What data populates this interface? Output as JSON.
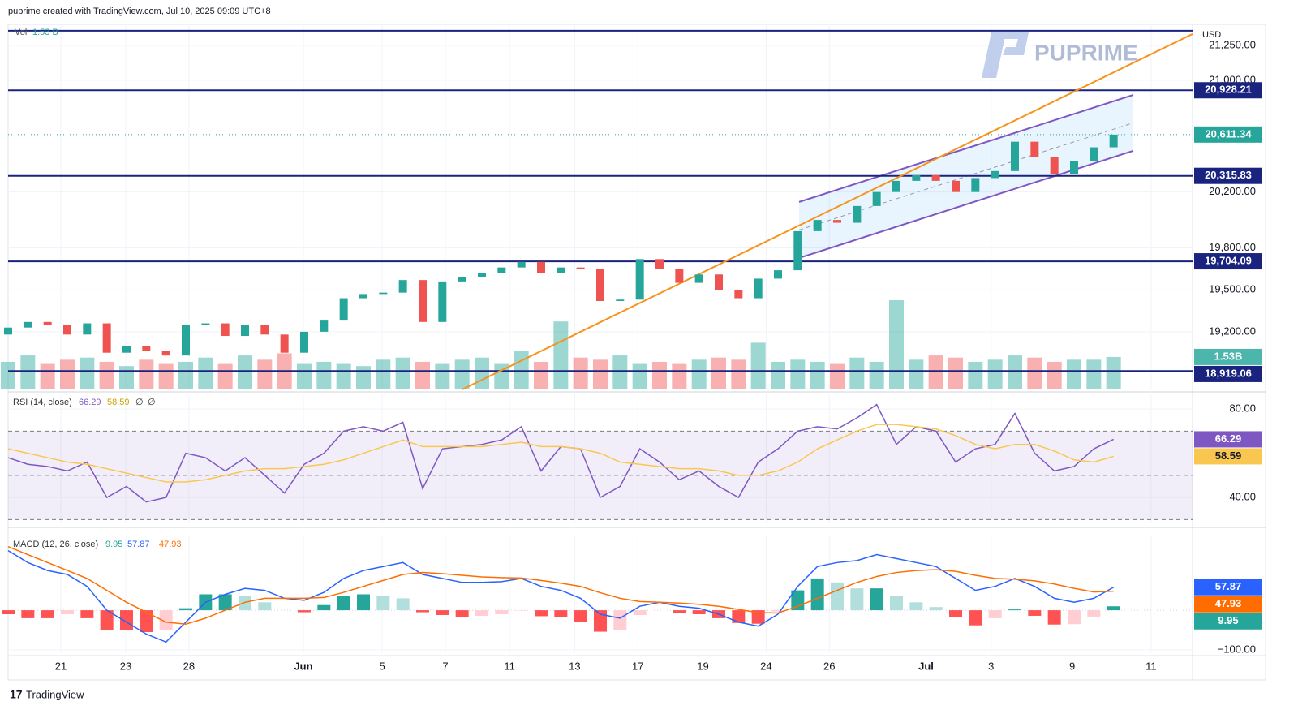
{
  "header": "puprime created with TradingView.com, Jul 10, 2025 09:09 UTC+8",
  "watermark": "PUPRIME",
  "footer": "TradingView",
  "chart_data": [
    {
      "type": "candlestick",
      "currency": "USD",
      "up_color": "#26a69a",
      "down_color": "#ef5350",
      "x": [
        0,
        1,
        2,
        3,
        4,
        5,
        6,
        7,
        8,
        9,
        10,
        11,
        12,
        13,
        14,
        15,
        16,
        17,
        18,
        19,
        20,
        21,
        22,
        23,
        24,
        25,
        26,
        27,
        28,
        29,
        30,
        31,
        32,
        33,
        34,
        35,
        36,
        37,
        38,
        39,
        40,
        41,
        42,
        43,
        44,
        45,
        46,
        47,
        48,
        49,
        50,
        51,
        52,
        53,
        54,
        55,
        56
      ],
      "open": [
        19180,
        19230,
        19270,
        19250,
        19180,
        19260,
        19050,
        19100,
        19060,
        19030,
        19250,
        19260,
        19170,
        19250,
        19180,
        19050,
        19200,
        19280,
        19440,
        19470,
        19480,
        19570,
        19270,
        19560,
        19590,
        19620,
        19660,
        19700,
        19620,
        19660,
        19650,
        19420,
        19430,
        19720,
        19650,
        19550,
        19610,
        19500,
        19440,
        19580,
        19640,
        19920,
        20000,
        19980,
        20100,
        20200,
        20280,
        20320,
        20280,
        20200,
        20300,
        20350,
        20560,
        20450,
        20330,
        20420,
        20520
      ],
      "close": [
        19230,
        19270,
        19250,
        19180,
        19260,
        19050,
        19100,
        19060,
        19030,
        19250,
        19260,
        19170,
        19250,
        19180,
        19050,
        19200,
        19280,
        19440,
        19470,
        19480,
        19570,
        19270,
        19560,
        19590,
        19620,
        19660,
        19700,
        19620,
        19660,
        19650,
        19420,
        19430,
        19720,
        19650,
        19550,
        19610,
        19500,
        19440,
        19580,
        19640,
        19920,
        20000,
        19980,
        20100,
        20200,
        20280,
        20320,
        20280,
        20200,
        20300,
        20350,
        20560,
        20450,
        20330,
        20420,
        20520,
        20611.34
      ],
      "last_price_label": "20,611.34",
      "ylim": [
        18787,
        21400
      ],
      "yticks": [
        {
          "value": 21250,
          "label": "21,250.00"
        },
        {
          "value": 21000,
          "label": "21,000.00"
        },
        {
          "value": 20200,
          "label": "20,200.00"
        },
        {
          "value": 19800,
          "label": "19,800.00"
        },
        {
          "value": 19500,
          "label": "19,500.00"
        },
        {
          "value": 19200,
          "label": "19,200.00"
        }
      ],
      "xlim": [
        0,
        60
      ],
      "xticks": [
        {
          "value": 2.67,
          "label": "21"
        },
        {
          "value": 5.96,
          "label": "23"
        },
        {
          "value": 9.16,
          "label": "28"
        },
        {
          "value": 14.96,
          "label": "Jun"
        },
        {
          "value": 18.95,
          "label": "5"
        },
        {
          "value": 22.15,
          "label": "7"
        },
        {
          "value": 25.4,
          "label": "11"
        },
        {
          "value": 28.7,
          "label": "13"
        },
        {
          "value": 31.9,
          "label": "17"
        },
        {
          "value": 35.2,
          "label": "19"
        },
        {
          "value": 38.4,
          "label": "24"
        },
        {
          "value": 41.6,
          "label": "26"
        },
        {
          "value": 46.5,
          "label": "Jul"
        },
        {
          "value": 49.8,
          "label": "3"
        },
        {
          "value": 53.9,
          "label": "9"
        },
        {
          "value": 57.9,
          "label": "11"
        }
      ],
      "grid": true,
      "volume": {
        "name": "Vol",
        "legend_label": "1.53 B",
        "last_label": "1.53B",
        "values": [
          1.3,
          1.6,
          1.2,
          1.4,
          1.5,
          1.3,
          1.1,
          1.4,
          1.2,
          1.3,
          1.5,
          1.2,
          1.6,
          1.4,
          1.7,
          1.2,
          1.3,
          1.2,
          1.1,
          1.4,
          1.5,
          1.3,
          1.2,
          1.4,
          1.5,
          1.2,
          1.8,
          1.3,
          3.2,
          1.5,
          1.4,
          1.6,
          1.2,
          1.3,
          1.2,
          1.4,
          1.5,
          1.4,
          2.2,
          1.3,
          1.4,
          1.3,
          1.2,
          1.5,
          1.3,
          4.2,
          1.4,
          1.6,
          1.5,
          1.3,
          1.4,
          1.6,
          1.5,
          1.3,
          1.4,
          1.4,
          1.53
        ]
      },
      "level_color": "#1a237e",
      "levels": [
        {
          "value": 21354
        },
        {
          "value": 20928.21,
          "label": "20,928.21"
        },
        {
          "value": 20315.83,
          "label": "20,315.83"
        },
        {
          "value": 19704.09,
          "label": "19,704.09"
        },
        {
          "value": 18919.06,
          "label": "18,919.06"
        }
      ],
      "trend_line": {
        "x": [
          23,
          60
        ],
        "y": [
          18787,
          21331
        ],
        "color": "#f7931a"
      },
      "channel": {
        "x": [
          40.07,
          57
        ],
        "upper": [
          20129,
          20895
        ],
        "lower": [
          19728,
          20495
        ],
        "color": "#7e57c2"
      }
    },
    {
      "type": "line",
      "title": "RSI (14, close)",
      "series": [
        {
          "color": "#7e57c2",
          "last_label": "66.29",
          "values": [
            58,
            55,
            54,
            52,
            56,
            40,
            45,
            38,
            40,
            60,
            58,
            52,
            58,
            50,
            42,
            55,
            60,
            70,
            72,
            70,
            74,
            44,
            62,
            63,
            64,
            66,
            72,
            52,
            63,
            62,
            40,
            45,
            62,
            56,
            48,
            52,
            45,
            40,
            56,
            62,
            70,
            72,
            71,
            76,
            82,
            64,
            72,
            70,
            56,
            62,
            64,
            78,
            60,
            52,
            54,
            62,
            66.29
          ]
        },
        {
          "color": "#f9c74f",
          "last_label": "58.59",
          "values": [
            62,
            60,
            58,
            56,
            55,
            53,
            51,
            49,
            47,
            47,
            48,
            50,
            52,
            53,
            53,
            54,
            55,
            57,
            60,
            63,
            66,
            63,
            63,
            63,
            63,
            64,
            65,
            63,
            63,
            62,
            60,
            56,
            55,
            54,
            53,
            53,
            52,
            50,
            50,
            52,
            56,
            62,
            66,
            70,
            73,
            73,
            72,
            71,
            68,
            64,
            62,
            64,
            64,
            61,
            57,
            56,
            58.59
          ]
        }
      ],
      "legend_na": [
        "∅",
        "∅"
      ],
      "ylim": [
        28.3,
        87
      ],
      "yticks": [
        {
          "value": 80,
          "label": "80.00"
        },
        {
          "value": 40,
          "label": "40.00"
        }
      ],
      "bands": [
        70,
        50,
        30
      ]
    },
    {
      "type": "macd",
      "title": "MACD (12, 26, close)",
      "histogram": {
        "last_label": "9.95",
        "values": [
          -10,
          -20,
          -20,
          -10,
          -20,
          -50,
          -50,
          -55,
          -50,
          5,
          40,
          40,
          35,
          20,
          0,
          -5,
          13,
          35,
          40,
          35,
          30,
          -5,
          -12,
          -18,
          -14,
          -10,
          -1,
          -15,
          -18,
          -30,
          -54,
          -50,
          -12,
          0,
          -8,
          -10,
          -20,
          -32,
          -34,
          -3,
          50,
          80,
          70,
          55,
          55,
          35,
          20,
          8,
          -18,
          -38,
          -20,
          2,
          -14,
          -36,
          -35,
          -16,
          9.95
        ]
      },
      "series": [
        {
          "color": "#2962ff",
          "last_label": "57.87",
          "values": [
            150,
            120,
            100,
            90,
            60,
            0,
            -30,
            -60,
            -80,
            -30,
            20,
            40,
            55,
            50,
            30,
            25,
            45,
            80,
            100,
            110,
            120,
            90,
            80,
            70,
            70,
            72,
            80,
            60,
            50,
            30,
            -10,
            -20,
            10,
            20,
            10,
            5,
            -10,
            -30,
            -40,
            -10,
            60,
            110,
            120,
            125,
            140,
            130,
            120,
            110,
            80,
            50,
            60,
            80,
            60,
            30,
            20,
            30,
            57.87
          ]
        },
        {
          "color": "#ff6d00",
          "last_label": "47.93",
          "values": [
            160,
            140,
            120,
            100,
            80,
            50,
            20,
            -5,
            -30,
            -35,
            -20,
            0,
            20,
            30,
            30,
            30,
            32,
            45,
            60,
            75,
            90,
            95,
            92,
            88,
            84,
            82,
            81,
            75,
            68,
            60,
            44,
            30,
            22,
            20,
            18,
            15,
            10,
            2,
            -6,
            -7,
            10,
            30,
            50,
            70,
            85,
            95,
            100,
            102,
            98,
            88,
            80,
            78,
            74,
            66,
            55,
            46,
            47.93
          ]
        }
      ],
      "ylim": [
        -108,
        188
      ],
      "yticks": [
        {
          "value": -100,
          "label": "−100.00"
        }
      ]
    }
  ]
}
